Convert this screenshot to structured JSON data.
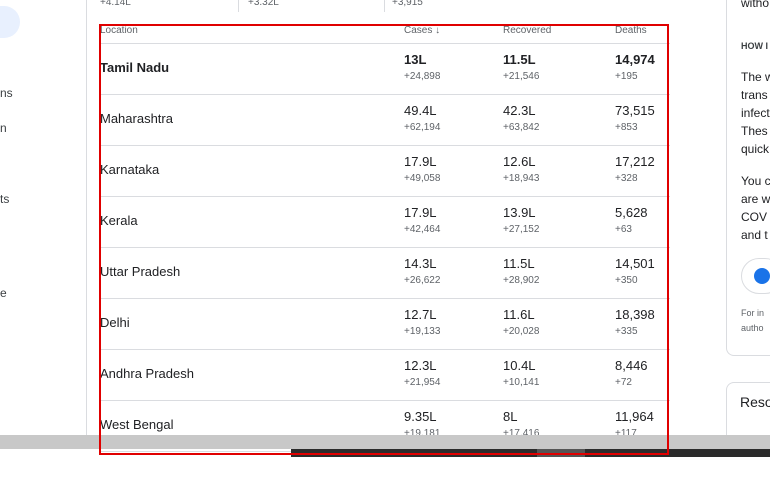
{
  "top_strip": [
    "+4.14L",
    "+3.32L",
    "+3,915"
  ],
  "left_nav": [
    "ns",
    "n",
    "ts",
    "e"
  ],
  "table": {
    "headers": {
      "location": "Location",
      "cases": "Cases",
      "sort_indicator": "↓",
      "recovered": "Recovered",
      "deaths": "Deaths"
    },
    "rows": [
      {
        "location": "Tamil Nadu",
        "cases": "13L",
        "cases_delta": "+24,898",
        "recovered": "11.5L",
        "recovered_delta": "+21,546",
        "deaths": "14,974",
        "deaths_delta": "+195"
      },
      {
        "location": "Maharashtra",
        "cases": "49.4L",
        "cases_delta": "+62,194",
        "recovered": "42.3L",
        "recovered_delta": "+63,842",
        "deaths": "73,515",
        "deaths_delta": "+853"
      },
      {
        "location": "Karnataka",
        "cases": "17.9L",
        "cases_delta": "+49,058",
        "recovered": "12.6L",
        "recovered_delta": "+18,943",
        "deaths": "17,212",
        "deaths_delta": "+328"
      },
      {
        "location": "Kerala",
        "cases": "17.9L",
        "cases_delta": "+42,464",
        "recovered": "13.9L",
        "recovered_delta": "+27,152",
        "deaths": "5,628",
        "deaths_delta": "+63"
      },
      {
        "location": "Uttar Pradesh",
        "cases": "14.3L",
        "cases_delta": "+26,622",
        "recovered": "11.5L",
        "recovered_delta": "+28,902",
        "deaths": "14,501",
        "deaths_delta": "+350"
      },
      {
        "location": "Delhi",
        "cases": "12.7L",
        "cases_delta": "+19,133",
        "recovered": "11.6L",
        "recovered_delta": "+20,028",
        "deaths": "18,398",
        "deaths_delta": "+335"
      },
      {
        "location": "Andhra Pradesh",
        "cases": "12.3L",
        "cases_delta": "+21,954",
        "recovered": "10.4L",
        "recovered_delta": "+10,141",
        "deaths": "8,446",
        "deaths_delta": "+72"
      },
      {
        "location": "West Bengal",
        "cases": "9.35L",
        "cases_delta": "+19,181",
        "recovered": "8L",
        "recovered_delta": "+17,416",
        "deaths": "11,964",
        "deaths_delta": "+117"
      }
    ]
  },
  "right_card": {
    "frag_top": "witho",
    "heading": "HOW I",
    "p1": [
      "The w",
      "trans",
      "infect",
      "Thes",
      "quick"
    ],
    "p2": [
      "You c",
      "are w",
      "COV",
      "and t"
    ],
    "foot": [
      "For in",
      "autho"
    ]
  },
  "resources_label": "Reso",
  "colors": {
    "highlight": "#e00000",
    "divider": "#dadce0"
  }
}
